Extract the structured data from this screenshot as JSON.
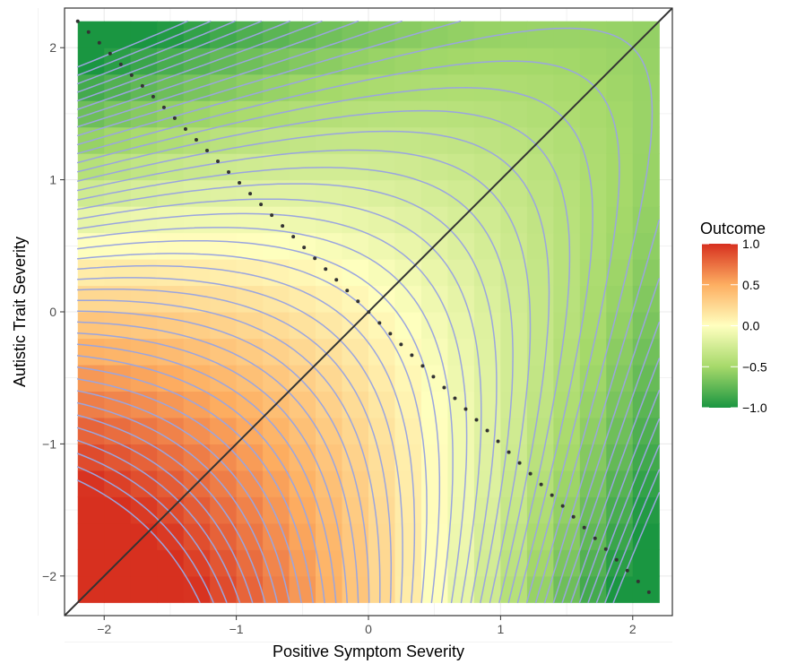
{
  "chart_data": {
    "type": "heatmap",
    "title": "",
    "xlabel": "Positive Symptom Severity",
    "ylabel": "Autistic Trait Severity",
    "xlim": [
      -2.3,
      2.3
    ],
    "ylim": [
      -2.3,
      2.3
    ],
    "x_ticks": [
      -2,
      -1,
      0,
      1,
      2
    ],
    "x_tick_labels": [
      "−2",
      "−1",
      "0",
      "1",
      "2"
    ],
    "y_ticks": [
      -2,
      -1,
      0,
      1,
      2
    ],
    "y_tick_labels": [
      "−2",
      "−1",
      "0",
      "1",
      "2"
    ],
    "grid": true,
    "surface": {
      "description_formula": "outcome = 0.05 - 0.225*(x + y) - 0.05*(x*x + y*y) + 0.175*x*y",
      "range": [
        -2.2,
        2.2
      ],
      "cells": 22,
      "contour_levels_min": -1.0,
      "contour_levels_max": 1.0,
      "contour_step": 0.05
    },
    "lines": [
      {
        "name": "",
        "style": "solid",
        "points": [
          [
            -2.3,
            -2.3
          ],
          [
            2.3,
            2.3
          ]
        ],
        "color": "#333333"
      },
      {
        "name": "",
        "style": "dotted",
        "points": [
          [
            -2.2,
            2.2
          ],
          [
            2.2,
            -2.2
          ]
        ],
        "color": "#333333"
      }
    ],
    "legend": {
      "title": "Outcome",
      "position": "right",
      "ticks": [
        1.0,
        0.5,
        0.0,
        -0.5,
        -1.0
      ],
      "tick_labels": [
        "1.0",
        "0.5",
        "0.0",
        "−0.5",
        "−1.0"
      ],
      "scale_min": -1.0,
      "scale_max": 1.0
    },
    "colors": {
      "high": "#d7301f",
      "mid_high": "#fdae61",
      "mid": "#ffffbf",
      "mid_low": "#a6d96a",
      "low": "#1a9641",
      "contour": "#9aa5df",
      "grid": "#ebebeb",
      "panel_border": "#333333"
    }
  }
}
